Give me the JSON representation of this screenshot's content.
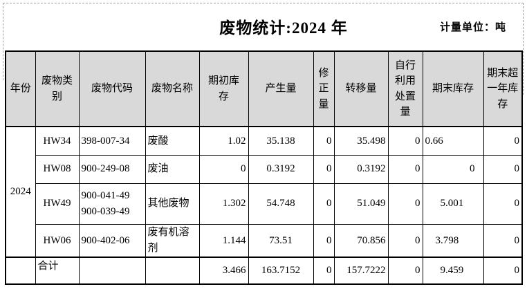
{
  "title": "废物统计:2024 年",
  "unit_label": "计量单位：吨",
  "table": {
    "columns": [
      {
        "key": "year",
        "label": "年份"
      },
      {
        "key": "category",
        "label": "废物类\n别"
      },
      {
        "key": "code",
        "label": "废物代码"
      },
      {
        "key": "name",
        "label": "废物名称"
      },
      {
        "key": "opening",
        "label": "期初库\n存"
      },
      {
        "key": "generated",
        "label": "产生量"
      },
      {
        "key": "corrected",
        "label": "修\n正\n量"
      },
      {
        "key": "transferred",
        "label": "转移量"
      },
      {
        "key": "self_disposal",
        "label": "自行\n利用\n处置\n量"
      },
      {
        "key": "closing",
        "label": "期末库存"
      },
      {
        "key": "closing_over_year",
        "label": "期末超\n一年库\n存"
      }
    ],
    "year": "2024",
    "rows": [
      {
        "category": "HW34",
        "code": "398-007-34",
        "name": "废酸",
        "opening": "1.02",
        "generated": "35.138",
        "corrected": "0",
        "transferred": "35.498",
        "self_disposal": "0",
        "closing": "0.66",
        "closing_over_year": "0"
      },
      {
        "category": "HW08",
        "code": "900-249-08",
        "name": "废油",
        "opening": "0",
        "generated": "0.3192",
        "corrected": "0",
        "transferred": "0.3192",
        "self_disposal": "0",
        "closing": "0",
        "closing_over_year": "0"
      },
      {
        "category": "HW49",
        "code": "900-041-49\n900-039-49",
        "name": "其他废物",
        "opening": "1.302",
        "generated": "54.748",
        "corrected": "0",
        "transferred": "51.049",
        "self_disposal": "0",
        "closing": "5.001",
        "closing_over_year": "0"
      },
      {
        "category": "HW06",
        "code": "900-402-06",
        "name": "废有机溶剂",
        "opening": "1.144",
        "generated": "73.51",
        "corrected": "0",
        "transferred": "70.856",
        "self_disposal": "0",
        "closing": "3.798",
        "closing_over_year": "0"
      }
    ],
    "total_row": {
      "category": "合计",
      "code": "",
      "name": "",
      "opening": "3.466",
      "generated": "163.7152",
      "corrected": "0",
      "transferred": "157.7222",
      "self_disposal": "0",
      "closing": "9.459",
      "closing_over_year": "0"
    }
  },
  "colors": {
    "header_bg": "#d9d9d9",
    "grid_border": "#000000",
    "page_break_dash": "#9e9e9e"
  }
}
